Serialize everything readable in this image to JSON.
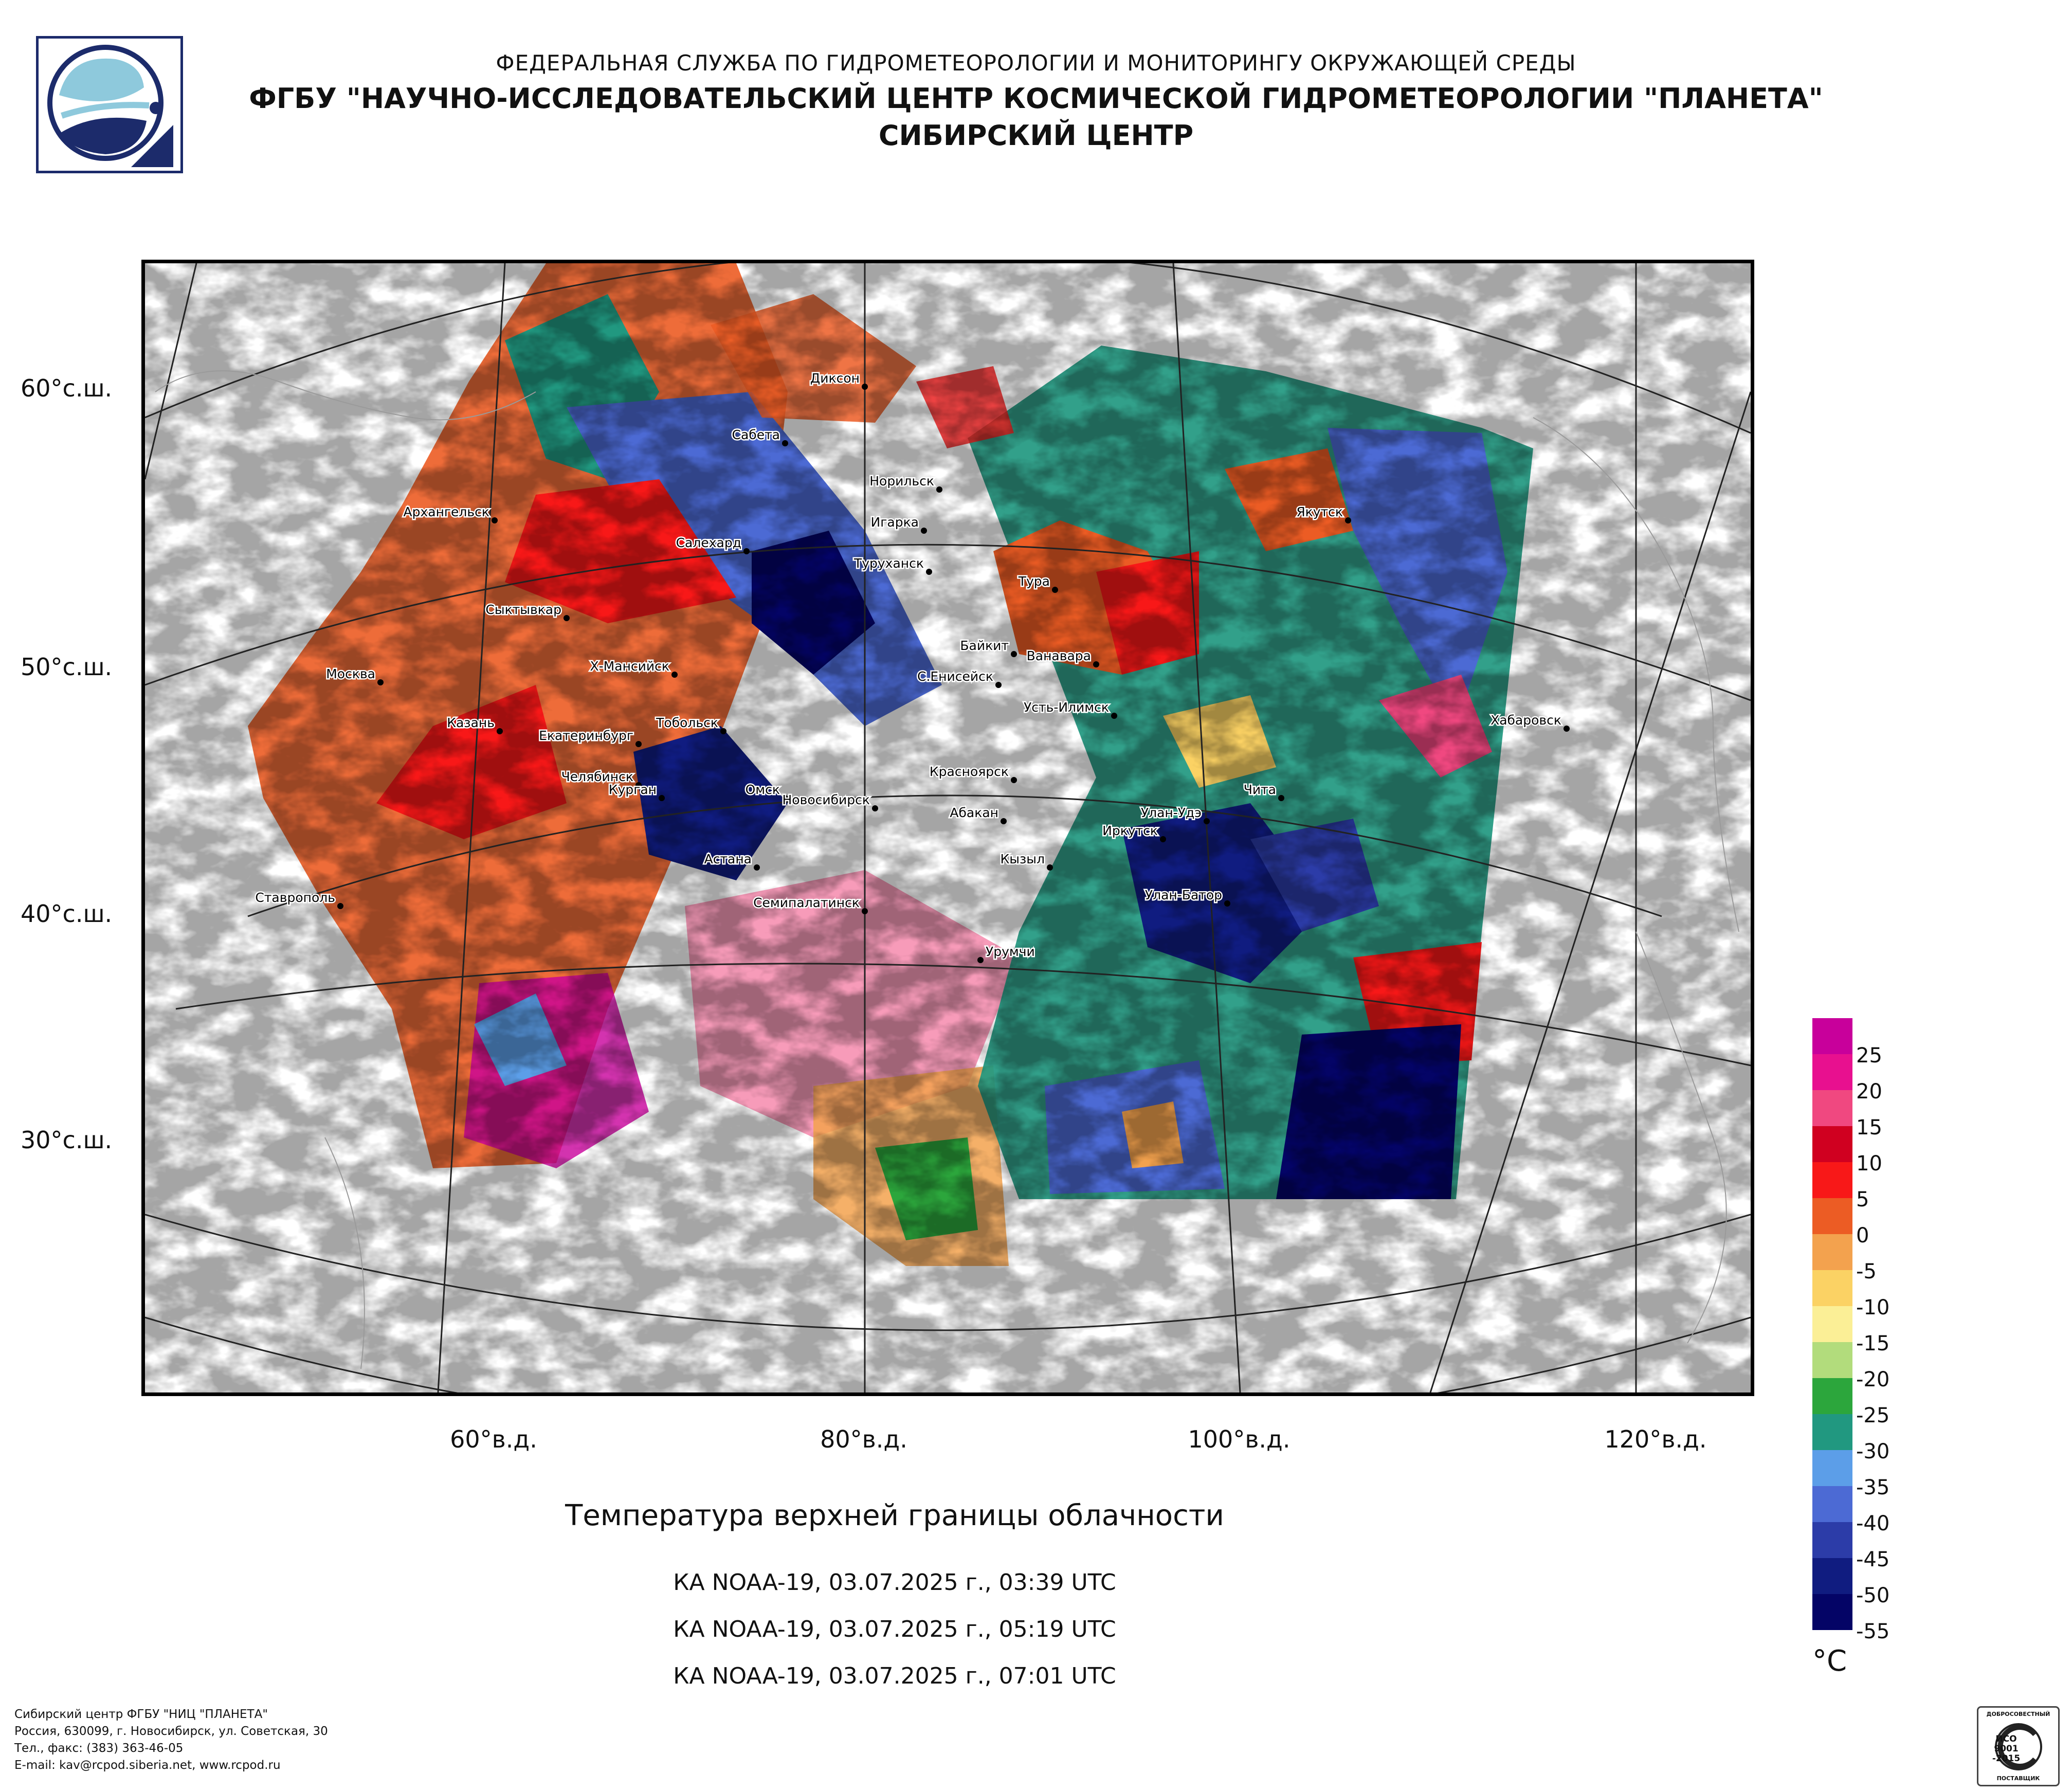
{
  "header": {
    "line1": "ФЕДЕРАЛЬНАЯ СЛУЖБА ПО ГИДРОМЕТЕОРОЛОГИИ И МОНИТОРИНГУ ОКРУЖАЮЩЕЙ СРЕДЫ",
    "line2": "ФГБУ \"НАУЧНО-ИССЛЕДОВАТЕЛЬСКИЙ ЦЕНТР КОСМИЧЕСКОЙ ГИДРОМЕТЕОРОЛОГИИ \"ПЛАНЕТА\"",
    "line3": "СИБИРСКИЙ ЦЕНТР"
  },
  "colors": {
    "frame": "#000000",
    "graticule": "#222222",
    "logo_blue": "#1c2b6b",
    "logo_light": "#8ec9dc"
  },
  "map": {
    "lat_labels": [
      "60°с.ш.",
      "50°с.ш.",
      "40°с.ш.",
      "30°с.ш."
    ],
    "lon_labels": [
      "60°в.д.",
      "80°в.д.",
      "100°в.д.",
      "120°в.д."
    ],
    "cities": [
      {
        "name": "Диксон"
      },
      {
        "name": "Сабета"
      },
      {
        "name": "Норильск"
      },
      {
        "name": "Игарка"
      },
      {
        "name": "Архангельск"
      },
      {
        "name": "Салехард"
      },
      {
        "name": "Туруханск"
      },
      {
        "name": "Тура"
      },
      {
        "name": "Якутск"
      },
      {
        "name": "Сыктывкар"
      },
      {
        "name": "Байкит"
      },
      {
        "name": "Ванавара"
      },
      {
        "name": "Москва"
      },
      {
        "name": "Х-Мансийск"
      },
      {
        "name": "С.Енисейск"
      },
      {
        "name": "Усть-Илимск"
      },
      {
        "name": "Хабаровск"
      },
      {
        "name": "Казань"
      },
      {
        "name": "Тобольск"
      },
      {
        "name": "Екатеринбург"
      },
      {
        "name": "Красноярск"
      },
      {
        "name": "Челябинск"
      },
      {
        "name": "Курган"
      },
      {
        "name": "Омск"
      },
      {
        "name": "Чита"
      },
      {
        "name": "Новосибирск"
      },
      {
        "name": "Абакан"
      },
      {
        "name": "Улан-Удэ"
      },
      {
        "name": "Иркутск"
      },
      {
        "name": "Кызыл"
      },
      {
        "name": "Астана"
      },
      {
        "name": "Ставрополь"
      },
      {
        "name": "Семипалатинск"
      },
      {
        "name": "Улан-Батор"
      },
      {
        "name": "Урумчи"
      }
    ]
  },
  "product": {
    "title": "Температура верхней границы облачности",
    "passes": [
      "КА NOAA-19, 03.07.2025 г., 03:39 UTC",
      "КА NOAA-19, 03.07.2025 г., 05:19 UTC",
      "КА NOAA-19, 03.07.2025 г., 07:01 UTC"
    ]
  },
  "legend": {
    "unit": "°C",
    "entries": [
      {
        "label": "25",
        "color": "#c8009b"
      },
      {
        "label": "20",
        "color": "#e8108f"
      },
      {
        "label": "15",
        "color": "#f04880"
      },
      {
        "label": "10",
        "color": "#d00020"
      },
      {
        "label": "5",
        "color": "#f81818"
      },
      {
        "label": "0",
        "color": "#ec5c24"
      },
      {
        "label": "-5",
        "color": "#f3a24e"
      },
      {
        "label": "-10",
        "color": "#fbd264"
      },
      {
        "label": "-15",
        "color": "#fbef96"
      },
      {
        "label": "-20",
        "color": "#b2dc7c"
      },
      {
        "label": "-25",
        "color": "#2ca63c"
      },
      {
        "label": "-30",
        "color": "#219880"
      },
      {
        "label": "-35",
        "color": "#5c9ee8"
      },
      {
        "label": "-40",
        "color": "#4c6ad4"
      },
      {
        "label": "-45",
        "color": "#2c3ca8"
      },
      {
        "label": "-50",
        "color": "#101c80"
      },
      {
        "label": "-55",
        "color": "#040466"
      }
    ]
  },
  "footer": {
    "line1": "Сибирский центр ФГБУ \"НИЦ \"ПЛАНЕТА\"",
    "line2": "Россия, 630099, г. Новосибирск, ул. Советская, 30",
    "line3": "Тел., факс: (383) 363-46-05",
    "line4": "E-mail: kav@rcpod.siberia.net, www.rcpod.ru"
  },
  "certification": {
    "top": "ДОБРОСОВЕСТНЫЙ",
    "iso": "ИСО",
    "code": "9001",
    "year": "-2015",
    "bottom": "ПОСТАВЩИК"
  }
}
